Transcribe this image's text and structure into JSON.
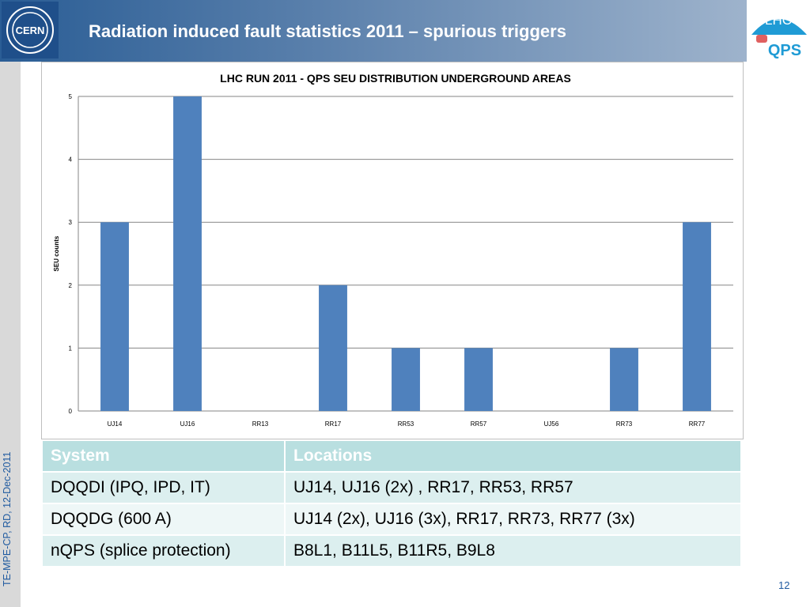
{
  "header": {
    "title": "Radiation induced fault statistics 2011 – spurious triggers"
  },
  "logos": {
    "cern_text": "CERN",
    "lhc_text": "LHC",
    "qps_text": "QPS"
  },
  "side": {
    "text": "TE-MPE-CP, RD, 12-Dec-2011"
  },
  "chart_data": {
    "type": "bar",
    "title": "LHC RUN 2011 - QPS SEU DISTRIBUTION UNDERGROUND AREAS",
    "xlabel": "",
    "ylabel": "SEU counts",
    "categories": [
      "UJ14",
      "UJ16",
      "RR13",
      "RR17",
      "RR53",
      "RR57",
      "UJ56",
      "RR73",
      "RR77"
    ],
    "values": [
      3,
      5,
      0,
      2,
      1,
      1,
      0,
      1,
      3
    ],
    "ylim": [
      0,
      5
    ],
    "yticks": [
      0,
      1,
      2,
      3,
      4,
      5
    ],
    "grid": true,
    "colors": {
      "bar": "#4f81bd",
      "grid": "#868686"
    }
  },
  "table": {
    "headers": [
      "System",
      "Locations"
    ],
    "rows": [
      [
        "DQQDI (IPQ, IPD, IT)",
        "UJ14, UJ16 (2x) , RR17, RR53, RR57"
      ],
      [
        "DQQDG (600 A)",
        "UJ14 (2x), UJ16 (3x), RR17, RR73, RR77 (3x)"
      ],
      [
        "nQPS (splice protection)",
        "B8L1, B11L5, B11R5, B9L8"
      ]
    ]
  },
  "footer": {
    "page": "12"
  }
}
